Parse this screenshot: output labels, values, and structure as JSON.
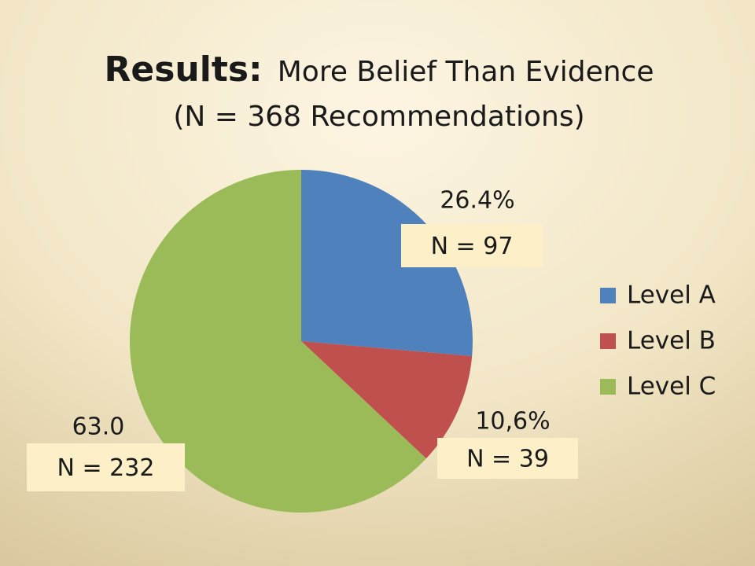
{
  "chart_data": {
    "type": "pie",
    "title": "Results:",
    "subtitle": "More Belief Than Evidence",
    "caption": "(N = 368 Recommendations)",
    "categories": [
      "Level A",
      "Level B",
      "Level C"
    ],
    "values": [
      26.4,
      10.6,
      63.0
    ],
    "value_labels": [
      "26.4%",
      "10,6%",
      "63.0"
    ],
    "count_labels": [
      "N = 97",
      "N = 39",
      "N = 232"
    ],
    "colors": [
      "#4f81bd",
      "#c0504d",
      "#9bbb59"
    ],
    "legend": "right"
  }
}
